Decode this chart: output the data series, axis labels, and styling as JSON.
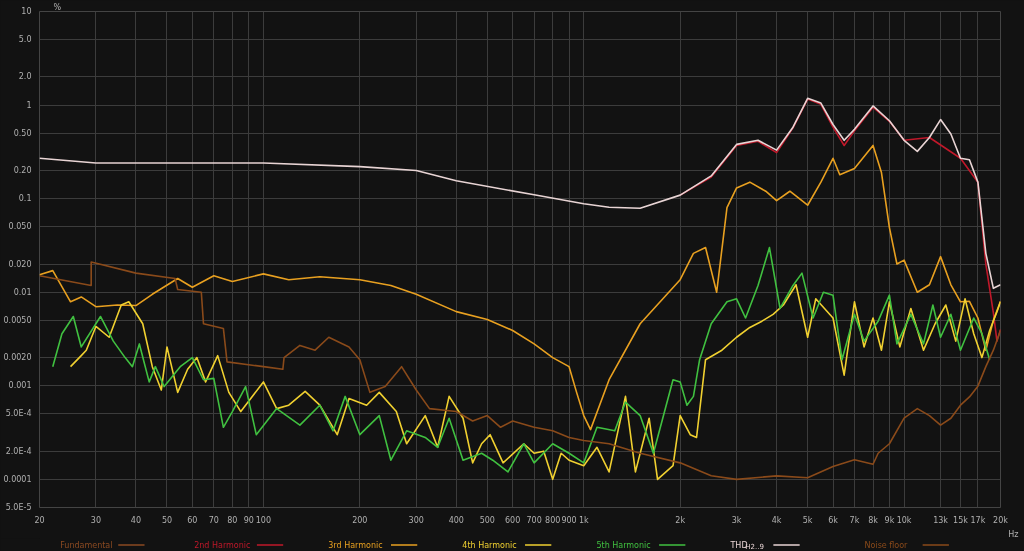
{
  "chart_data": {
    "type": "line",
    "ylabel": "%",
    "log": "xy",
    "grid": true,
    "legend": "bottom",
    "line_style": "solid",
    "marker": "none",
    "xlim": [
      20,
      20000
    ],
    "ylim": [
      5e-05,
      10
    ],
    "xticks": [
      20,
      30,
      40,
      50,
      60,
      70,
      80,
      90,
      100,
      200,
      300,
      400,
      500,
      600,
      700,
      800,
      900,
      {
        "value": 1000,
        "label": "1k"
      },
      {
        "value": 2000,
        "label": "2k"
      },
      {
        "value": 3000,
        "label": "3k"
      },
      {
        "value": 4000,
        "label": "4k"
      },
      {
        "value": 5000,
        "label": "5k"
      },
      {
        "value": 6000,
        "label": "6k"
      },
      {
        "value": 7000,
        "label": "7k"
      },
      {
        "value": 8000,
        "label": "8k"
      },
      {
        "value": 9000,
        "label": "9k"
      },
      {
        "value": 10000,
        "label": "10k"
      },
      {
        "value": 13000,
        "label": "13k"
      },
      {
        "value": 15000,
        "label": "15k"
      },
      {
        "value": 17000,
        "label": "17k"
      },
      {
        "value": 20000,
        "label": "20k"
      }
    ],
    "xlabel": "Hz",
    "yticks": [
      10,
      {
        "value": 5,
        "label": "5.0"
      },
      {
        "value": 2,
        "label": "2.0"
      },
      1,
      {
        "value": 0.5,
        "label": "0.50"
      },
      {
        "value": 0.2,
        "label": "0.20"
      },
      0.1,
      {
        "value": 0.05,
        "label": "0.050"
      },
      {
        "value": 0.02,
        "label": "0.020"
      },
      0.01,
      {
        "value": 0.005,
        "label": "0.0050"
      },
      {
        "value": 0.002,
        "label": "0.0020"
      },
      0.001,
      {
        "value": 0.0005,
        "label": "5.0E-4"
      },
      {
        "value": 0.0002,
        "label": "2.0E-4"
      },
      0.0001,
      {
        "value": 5e-05,
        "label": "5.0E-5"
      }
    ],
    "series": [
      {
        "name": "Fundamental",
        "color": "#8b4a22"
      },
      {
        "name": "2nd Harmonic",
        "color": "#c0182a",
        "x": [
          2000,
          2500,
          3000,
          3500,
          4000,
          4500,
          5000,
          5500,
          6000,
          6500,
          7000,
          8000,
          9000,
          10000,
          12000,
          15000,
          17000,
          18000,
          19000,
          19500,
          20000
        ],
        "values": [
          0.109,
          0.17,
          0.37,
          0.41,
          0.31,
          0.57,
          1.16,
          1.02,
          0.58,
          0.37,
          0.53,
          0.95,
          0.67,
          0.42,
          0.45,
          0.27,
          0.15,
          0.02,
          0.006,
          0.003,
          0.004
        ]
      },
      {
        "name": "3rd Harmonic",
        "color": "#e8a020",
        "x": [
          20,
          22,
          25,
          27,
          30,
          35,
          40,
          45,
          54,
          60,
          70,
          80,
          100,
          120,
          150,
          200,
          250,
          300,
          400,
          500,
          600,
          700,
          800,
          900,
          950,
          1000,
          1050,
          1200,
          1500,
          2000,
          2200,
          2400,
          2600,
          2800,
          3000,
          3300,
          3700,
          4000,
          4400,
          5000,
          5500,
          6000,
          6300,
          7000,
          8000,
          8500,
          9000,
          9500,
          10000,
          11000,
          12000,
          13000,
          14000,
          15000,
          16000,
          17000,
          18000,
          19000,
          20000
        ],
        "values": [
          0.0154,
          0.017,
          0.0079,
          0.0089,
          0.007,
          0.0073,
          0.0072,
          0.0095,
          0.014,
          0.0113,
          0.015,
          0.013,
          0.0157,
          0.0136,
          0.0146,
          0.0136,
          0.0118,
          0.0095,
          0.0062,
          0.0051,
          0.0039,
          0.0028,
          0.002,
          0.0016,
          0.00085,
          0.00048,
          0.00034,
          0.00116,
          0.0046,
          0.0136,
          0.026,
          0.03,
          0.01,
          0.08,
          0.13,
          0.15,
          0.12,
          0.095,
          0.12,
          0.085,
          0.15,
          0.27,
          0.18,
          0.21,
          0.37,
          0.19,
          0.049,
          0.02,
          0.022,
          0.01,
          0.012,
          0.024,
          0.012,
          0.0079,
          0.008,
          0.0053,
          0.0024,
          0.005,
          0.008
        ]
      },
      {
        "name": "4th Harmonic",
        "color": "#f0d030",
        "x": [
          25,
          27,
          28,
          30,
          33,
          36,
          38,
          42,
          45,
          48,
          50,
          54,
          58,
          62,
          66,
          72,
          78,
          85,
          100,
          110,
          120,
          135,
          150,
          170,
          185,
          210,
          230,
          260,
          280,
          320,
          350,
          380,
          420,
          450,
          480,
          510,
          560,
          650,
          700,
          750,
          800,
          850,
          900,
          1000,
          1100,
          1200,
          1350,
          1450,
          1600,
          1700,
          1900,
          2000,
          2150,
          2250,
          2400,
          2700,
          3000,
          3300,
          3600,
          3900,
          4200,
          4600,
          5000,
          5300,
          6000,
          6500,
          7000,
          7500,
          8000,
          8500,
          9000,
          9700,
          10500,
          11500,
          12500,
          13500,
          14500,
          15500,
          16500,
          17500,
          18500,
          19500,
          20000
        ],
        "values": [
          0.0016,
          0.0021,
          0.0024,
          0.0043,
          0.0033,
          0.0073,
          0.0079,
          0.0046,
          0.0016,
          0.0009,
          0.0026,
          0.00085,
          0.0015,
          0.002,
          0.0011,
          0.0021,
          0.00085,
          0.00053,
          0.0011,
          0.00057,
          0.00062,
          0.00087,
          0.00062,
          0.0003,
          0.00073,
          0.00062,
          0.00085,
          0.00053,
          0.00024,
          0.00048,
          0.00022,
          0.00077,
          0.00045,
          0.00015,
          0.00024,
          0.0003,
          0.00015,
          0.00024,
          0.00019,
          0.0002,
          0.0001,
          0.00019,
          0.00016,
          0.00014,
          0.00022,
          0.00012,
          0.00077,
          0.00012,
          0.00045,
          0.0001,
          0.00014,
          0.00048,
          0.0003,
          0.00028,
          0.0019,
          0.0024,
          0.0033,
          0.0042,
          0.0049,
          0.0058,
          0.0073,
          0.012,
          0.0033,
          0.0085,
          0.0053,
          0.0013,
          0.0079,
          0.0026,
          0.0053,
          0.0024,
          0.0079,
          0.0026,
          0.0067,
          0.0024,
          0.0046,
          0.0073,
          0.003,
          0.0085,
          0.0036,
          0.002,
          0.0039,
          0.0062,
          0.0079
        ]
      },
      {
        "name": "5th Harmonic",
        "color": "#40c040",
        "x": [
          22,
          23.5,
          25.5,
          27,
          31,
          34,
          37,
          39,
          41,
          44,
          46,
          49,
          55,
          60,
          65,
          70,
          75,
          80,
          88,
          95,
          110,
          130,
          150,
          165,
          180,
          200,
          230,
          250,
          280,
          320,
          350,
          380,
          420,
          480,
          520,
          580,
          650,
          700,
          800,
          900,
          1000,
          1100,
          1250,
          1350,
          1500,
          1650,
          1900,
          2000,
          2100,
          2200,
          2300,
          2500,
          2800,
          3000,
          3200,
          3500,
          3800,
          4100,
          4500,
          4800,
          5200,
          5600,
          6000,
          6400,
          7000,
          7500,
          8300,
          9000,
          9500,
          10500,
          11500,
          12300,
          13000,
          14000,
          15000,
          16500,
          17500,
          18500
        ],
        "values": [
          0.0016,
          0.0036,
          0.0055,
          0.0026,
          0.0055,
          0.003,
          0.002,
          0.0016,
          0.0028,
          0.0011,
          0.0016,
          0.00098,
          0.0016,
          0.002,
          0.00116,
          0.0012,
          0.00036,
          0.00053,
          0.00098,
          0.0003,
          0.00057,
          0.00038,
          0.00062,
          0.00033,
          0.00077,
          0.0003,
          0.00048,
          0.00016,
          0.00033,
          0.00028,
          0.00022,
          0.00045,
          0.00016,
          0.00019,
          0.00016,
          0.00012,
          0.00024,
          0.00015,
          0.00024,
          0.00019,
          0.00015,
          0.00036,
          0.00033,
          0.00067,
          0.00048,
          0.00019,
          0.00116,
          0.0011,
          0.00062,
          0.00077,
          0.0019,
          0.0046,
          0.0079,
          0.0085,
          0.0053,
          0.0118,
          0.03,
          0.0067,
          0.0118,
          0.016,
          0.0053,
          0.01,
          0.0093,
          0.0019,
          0.0058,
          0.003,
          0.0049,
          0.0093,
          0.0028,
          0.0058,
          0.0028,
          0.0073,
          0.0033,
          0.0058,
          0.0024,
          0.0053,
          0.0036,
          0.0019
        ]
      },
      {
        "name": "THD$_{H2..9}$",
        "color": "#e8d4d4",
        "x": [
          20,
          30,
          100,
          200,
          300,
          400,
          700,
          1000,
          1200,
          1500,
          2000,
          2500,
          3000,
          3500,
          4000,
          4500,
          5000,
          5500,
          6000,
          6500,
          7000,
          8000,
          9000,
          10000,
          11000,
          12000,
          13000,
          14000,
          15000,
          16000,
          17000,
          18000,
          19000,
          20000
        ],
        "values": [
          0.27,
          0.24,
          0.24,
          0.22,
          0.2,
          0.155,
          0.11,
          0.088,
          0.081,
          0.079,
          0.109,
          0.175,
          0.38,
          0.42,
          0.33,
          0.58,
          1.18,
          1.05,
          0.62,
          0.42,
          0.55,
          0.98,
          0.68,
          0.42,
          0.32,
          0.45,
          0.7,
          0.49,
          0.27,
          0.26,
          0.15,
          0.026,
          0.011,
          0.012
        ]
      },
      {
        "name": "Noise floor",
        "color": "#8a4a1a",
        "x": [
          20,
          29,
          29,
          40,
          53,
          54,
          64,
          65,
          75,
          77,
          100,
          115,
          116,
          130,
          145,
          160,
          185,
          200,
          215,
          240,
          270,
          300,
          330,
          400,
          450,
          500,
          550,
          600,
          700,
          800,
          900,
          1000,
          1200,
          1500,
          2000,
          2500,
          3000,
          4000,
          5000,
          6000,
          7000,
          8000,
          8300,
          9000,
          10000,
          11000,
          12000,
          13000,
          14000,
          15000,
          16000,
          17000,
          18000,
          19000,
          20000
        ],
        "values": [
          0.015,
          0.0118,
          0.021,
          0.016,
          0.014,
          0.0107,
          0.01,
          0.0046,
          0.0041,
          0.0018,
          0.0016,
          0.0015,
          0.002,
          0.0027,
          0.0024,
          0.0033,
          0.0026,
          0.0019,
          0.00085,
          0.00098,
          0.0016,
          0.0009,
          0.00057,
          0.00053,
          0.00042,
          0.00048,
          0.00036,
          0.00042,
          0.00036,
          0.00033,
          0.00028,
          0.00026,
          0.00024,
          0.00019,
          0.00015,
          0.000109,
          0.0001,
          0.000109,
          0.000104,
          0.000137,
          0.000162,
          0.000145,
          0.00019,
          0.00024,
          0.00045,
          0.00057,
          0.00048,
          0.00038,
          0.00045,
          0.00062,
          0.00076,
          0.00099,
          0.0016,
          0.0024,
          0.0039
        ]
      }
    ]
  }
}
